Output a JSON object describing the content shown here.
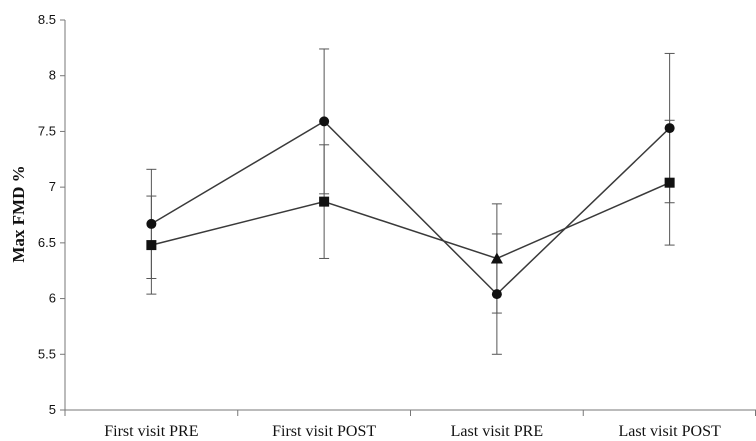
{
  "chart_data": {
    "type": "line",
    "title": "",
    "xlabel": "",
    "ylabel": "Max FMD %",
    "ylim": [
      5,
      8.5
    ],
    "yticks": [
      "5",
      "5.5",
      "6",
      "6.5",
      "7",
      "7.5",
      "8",
      "8.5"
    ],
    "categories": [
      "First visit PRE",
      "First visit POST",
      "Last visit PRE",
      "Last visit POST"
    ],
    "grid": false,
    "legend": "none",
    "series": [
      {
        "marker": "circle",
        "values": [
          6.67,
          7.59,
          6.04,
          7.53
        ],
        "error_upper": [
          7.16,
          8.24,
          6.58,
          8.2
        ],
        "error_lower": [
          6.18,
          6.94,
          5.5,
          6.86
        ]
      },
      {
        "marker": "square",
        "values": [
          6.48,
          6.87,
          null,
          7.04
        ],
        "error_upper": [
          6.92,
          7.38,
          null,
          7.6
        ],
        "error_lower": [
          6.04,
          6.36,
          null,
          6.48
        ]
      },
      {
        "marker": "triangle",
        "values": [
          null,
          null,
          6.36,
          null
        ],
        "error_upper": [
          null,
          null,
          6.85,
          null
        ],
        "error_lower": [
          null,
          null,
          5.87,
          null
        ]
      }
    ],
    "colors": {
      "line": "#3a3a3a",
      "marker": "#111111",
      "axis": "#777777"
    }
  }
}
